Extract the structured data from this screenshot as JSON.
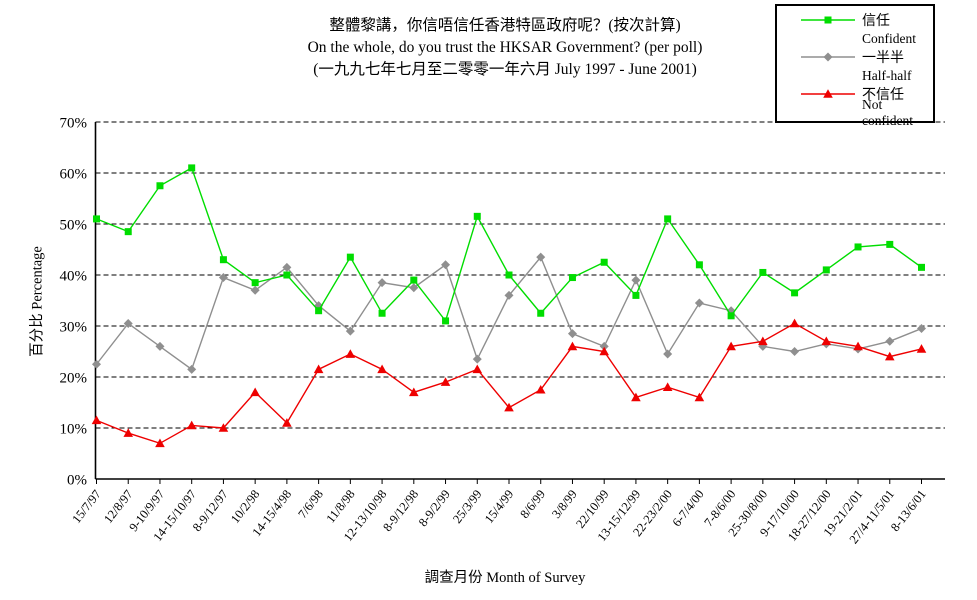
{
  "title": {
    "line1": "整體黎講，你信唔信任香港特區政府呢？(按次計算)",
    "line2": "On the whole, do you trust the HKSAR Government? (per poll)",
    "line3": "(一九九七年七月至二零零一年六月 July 1997 - June 2001)"
  },
  "axes": {
    "y_title": "百分比 Percentage",
    "x_title": "調查月份 Month of Survey"
  },
  "chart_data": {
    "type": "line",
    "categories": [
      "15/7/97",
      "12/8/97",
      "9-10/9/97",
      "14-15/10/97",
      "8-9/12/97",
      "10/2/98",
      "14-15/4/98",
      "7/6/98",
      "11/8/98",
      "12-13/10/98",
      "8-9/12/98",
      "8-9/2/99",
      "25/3/99",
      "15/4/99",
      "8/6/99",
      "3/8/99",
      "22/10/99",
      "13-15/12/99",
      "22-23/2/00",
      "6-7/4/00",
      "7-8/6/00",
      "25-30/8/00",
      "9-17/10/00",
      "18-27/12/00",
      "19-21/2/01",
      "27/4-11/5/01",
      "8-13/6/01"
    ],
    "series": [
      {
        "name_zh": "信任",
        "name_en": "Confident",
        "color": "#00dd00",
        "marker": "square",
        "values": [
          51,
          48.5,
          57.5,
          61,
          43,
          38.5,
          40,
          33,
          43.5,
          32.5,
          39,
          31,
          51.5,
          40,
          32.5,
          39.5,
          42.5,
          36,
          51,
          42,
          32,
          40.5,
          36.5,
          41,
          45.5,
          46,
          41.5
        ]
      },
      {
        "name_zh": "一半半",
        "name_en": "Half-half",
        "color": "#8f8f8f",
        "marker": "diamond",
        "values": [
          22.5,
          30.5,
          26,
          21.5,
          39.5,
          37,
          41.5,
          34,
          29,
          38.5,
          37.5,
          42,
          23.5,
          36,
          43.5,
          28.5,
          26,
          39,
          24.5,
          34.5,
          33,
          26,
          25,
          26.5,
          25.5,
          27,
          29.5
        ]
      },
      {
        "name_zh": "不信任",
        "name_en": "Not confident",
        "color": "#ee0000",
        "marker": "triangle",
        "values": [
          11.5,
          9,
          7,
          10.5,
          10,
          17,
          11,
          21.5,
          24.5,
          21.5,
          17,
          19,
          21.5,
          14,
          17.5,
          26,
          25,
          16,
          18,
          16,
          26,
          27,
          30.5,
          27,
          26,
          24,
          25.5
        ]
      }
    ],
    "ylim": [
      0,
      70
    ],
    "y_tick_step": 10,
    "y_tick_labels": [
      "0%",
      "10%",
      "20%",
      "30%",
      "40%",
      "50%",
      "60%",
      "70%"
    ],
    "grid": "horizontal-dashed",
    "legend_position": "top-right",
    "xlabel": "調查月份 Month of Survey",
    "ylabel": "百分比 Percentage"
  }
}
